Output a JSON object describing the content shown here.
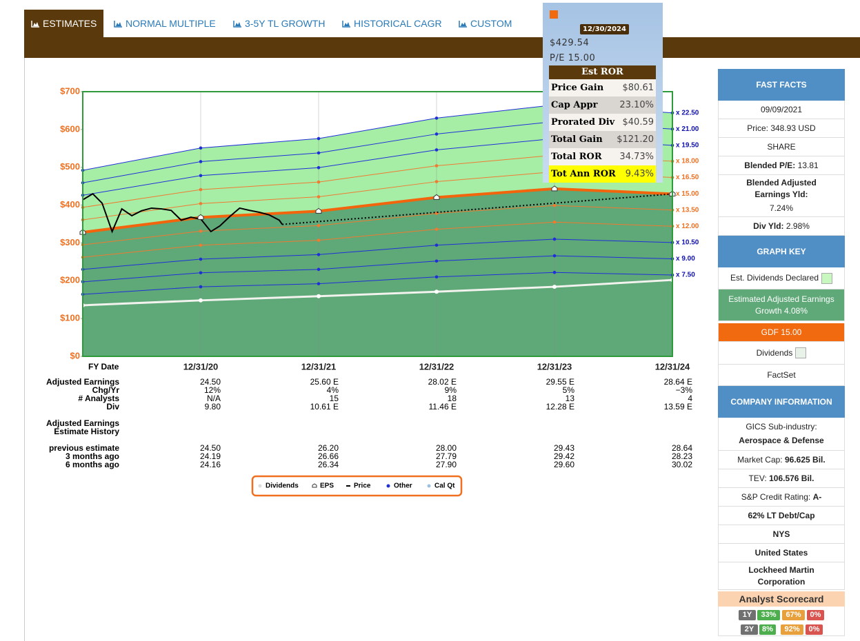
{
  "tabs": [
    "ESTIMATES",
    "NORMAL MULTIPLE",
    "3-5Y TL GROWTH",
    "HISTORICAL CAGR",
    "CUSTOM"
  ],
  "chart_data": {
    "type": "line",
    "x_label": "FY Date",
    "categories": [
      null,
      "12/31/20",
      "12/31/21",
      "12/31/22",
      "12/31/23",
      "12/31/24"
    ],
    "xlim": [
      "12/31/19",
      "12/31/24"
    ],
    "ylim": [
      0,
      700
    ],
    "yticks": [
      {
        "value": 0,
        "label": "$0"
      },
      {
        "value": 100,
        "label": "$100"
      },
      {
        "value": 200,
        "label": "$200"
      },
      {
        "value": 300,
        "label": "$300"
      },
      {
        "value": 400,
        "label": "$400"
      },
      {
        "value": 500,
        "label": "$500"
      },
      {
        "value": 600,
        "label": "$600"
      },
      {
        "value": 700,
        "label": "$700"
      }
    ],
    "grid": true,
    "series": [
      {
        "name": "x 22.50",
        "color": "#1f2fd8",
        "values": [
          492,
          551,
          576,
          630,
          665,
          644
        ]
      },
      {
        "name": "x 21.00",
        "color": "#1f2fd8",
        "values": [
          459,
          515,
          538,
          588,
          621,
          601
        ]
      },
      {
        "name": "x 19.50",
        "color": "#1f2fd8",
        "values": [
          426,
          478,
          499,
          546,
          576,
          558
        ]
      },
      {
        "name": "x 18.00",
        "color": "#f07a30",
        "values": [
          394,
          441,
          461,
          504,
          532,
          516
        ]
      },
      {
        "name": "x 16.50",
        "color": "#f07a30",
        "values": [
          361,
          404,
          422,
          462,
          488,
          473
        ]
      },
      {
        "name": "x 15.00",
        "color": "#f2650c",
        "values": [
          328,
          367.5,
          384,
          420.3,
          443.3,
          429.6
        ]
      },
      {
        "name": "x 13.50",
        "color": "#f07a30",
        "values": [
          295,
          331,
          346,
          378,
          399,
          387
        ]
      },
      {
        "name": "x 12.00",
        "color": "#f07a30",
        "values": [
          262,
          294,
          307,
          336,
          355,
          344
        ]
      },
      {
        "name": "x 10.50",
        "color": "#1f2fd8",
        "values": [
          230,
          257,
          269,
          294,
          310,
          301
        ]
      },
      {
        "name": "x 9.00",
        "color": "#1f2fd8",
        "values": [
          197,
          221,
          230,
          252,
          266,
          258
        ]
      },
      {
        "name": "x 7.50",
        "color": "#1f2fd8",
        "values": [
          164,
          184,
          192,
          210,
          222,
          215
        ]
      }
    ],
    "eps_series": 5,
    "upper_fill": "#a6eea6",
    "lower_fill": "#5fa878",
    "dividend_line": {
      "color": "#f2f2ee",
      "values": [
        135,
        148,
        159,
        171,
        184,
        202
      ]
    },
    "price_line": {
      "color": "#000000",
      "x": [
        "12/31/19",
        "01/31/20",
        "02/29/20",
        "03/31/20",
        "04/30/20",
        "05/31/20",
        "06/30/20",
        "07/31/20",
        "08/31/20",
        "09/30/20",
        "10/31/20",
        "11/30/20",
        "12/31/20",
        "01/31/21",
        "02/28/21",
        "03/31/21",
        "04/30/21",
        "05/31/21",
        "06/30/21",
        "07/31/21",
        "08/31/21",
        "09/09/21"
      ],
      "values": [
        414,
        430,
        405,
        330,
        390,
        372,
        385,
        392,
        390,
        386,
        360,
        368,
        363,
        330,
        345,
        370,
        392,
        386,
        381,
        374,
        360,
        348.93
      ]
    },
    "projection": {
      "color": "#000000",
      "x": [
        "09/09/21",
        "12/31/24"
      ],
      "values": [
        348.93,
        429.54
      ]
    },
    "legend": [
      "Dividends",
      "EPS",
      "Price",
      "Other",
      "Cal Qt"
    ]
  },
  "estimates_table": {
    "rows": [
      {
        "label": "Adjusted Earnings",
        "values": [
          "24.50",
          "25.60 E",
          "28.02 E",
          "29.55 E",
          "28.64 E"
        ]
      },
      {
        "label": "Chg/Yr",
        "values": [
          "12%",
          "4%",
          "9%",
          "5%",
          "−3%"
        ]
      },
      {
        "label": "# Analysts",
        "values": [
          "N/A",
          "15",
          "18",
          "13",
          "4"
        ]
      },
      {
        "label": "Div",
        "values": [
          "9.80",
          "10.61 E",
          "11.46 E",
          "12.28 E",
          "13.59 E"
        ]
      }
    ],
    "history_title": [
      "Adjusted Earnings",
      "Estimate History"
    ],
    "history_rows": [
      {
        "label": "previous estimate",
        "values": [
          "24.50",
          "26.20",
          "28.00",
          "29.43",
          "28.64"
        ]
      },
      {
        "label": "3 months ago",
        "values": [
          "24.19",
          "26.66",
          "27.79",
          "29.42",
          "28.23"
        ]
      },
      {
        "label": "6 months ago",
        "values": [
          "24.16",
          "26.34",
          "27.90",
          "29.60",
          "30.02"
        ]
      }
    ]
  },
  "tooltip": {
    "date": "12/30/2024",
    "price": "$429.54",
    "pe": "P/E 15.00",
    "title": "Est ROR",
    "rows": [
      [
        "Price Gain",
        "$80.61"
      ],
      [
        "Cap Appr",
        "23.10%"
      ],
      [
        "Prorated Div",
        "$40.59"
      ],
      [
        "Total Gain",
        "$121.20"
      ],
      [
        "Total ROR",
        "34.73%"
      ],
      [
        "Tot Ann ROR",
        "9.43%"
      ]
    ]
  },
  "sidebar": {
    "fast_facts": {
      "title": "FAST FACTS",
      "date": "09/09/2021",
      "price": {
        "label": "Price:",
        "value": "348.93 USD"
      },
      "share": "SHARE",
      "blended_pe": {
        "label": "Blended P/E:",
        "value": "13.81"
      },
      "earnings_yield": {
        "label": "Blended Adjusted Earnings Yld:",
        "value": "7.24%"
      },
      "div_yield": {
        "label": "Div Yld:",
        "value": "2.98%"
      }
    },
    "graph_key": {
      "title": "GRAPH KEY",
      "est_dividends": "Est. Dividends Declared",
      "earnings_growth": "Estimated Adjusted Earnings Growth 4.08%",
      "gdf": "GDF 15.00",
      "dividends": "Dividends",
      "source": "FactSet"
    },
    "company_info": {
      "title": "COMPANY INFORMATION",
      "gics_label": "GICS Sub-industry:",
      "gics": "Aerospace & Defense",
      "market_cap": {
        "label": "Market Cap:",
        "value": "96.625 Bil."
      },
      "tev": {
        "label": "TEV:",
        "value": "106.576 Bil."
      },
      "credit_rating": {
        "label": "S&P Credit Rating:",
        "value": "A-"
      },
      "debt": "62% LT Debt/Cap",
      "exchange": "NYS",
      "country": "United States",
      "name": "Lockheed Martin Corporation"
    },
    "scorecard": {
      "title": "Analyst Scorecard",
      "rows": [
        [
          "1Y",
          "33%",
          "67%",
          "0%"
        ],
        [
          "2Y",
          "8%",
          "92%",
          "0%"
        ]
      ]
    }
  }
}
